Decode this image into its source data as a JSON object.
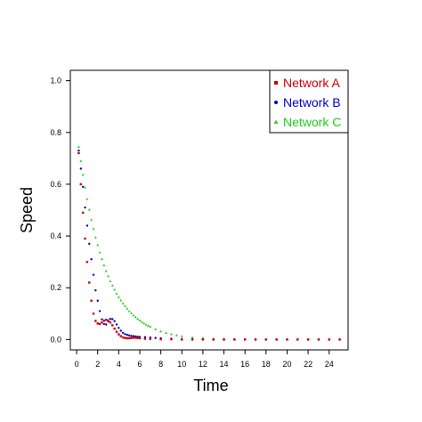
{
  "chart_data": {
    "type": "scatter",
    "xlabel": "Time",
    "ylabel": "Speed",
    "xlim": [
      -0.6,
      25.8
    ],
    "ylim": [
      -0.04,
      1.04
    ],
    "xticks": [
      0,
      2,
      4,
      6,
      8,
      10,
      12,
      14,
      16,
      18,
      20,
      22,
      24
    ],
    "yticks": [
      0.0,
      0.2,
      0.4,
      0.6,
      0.8,
      1.0
    ],
    "xtick_labels": [
      "0",
      "2",
      "4",
      "6",
      "8",
      "10",
      "12",
      "14",
      "16",
      "18",
      "20",
      "22",
      "24"
    ],
    "ytick_labels": [
      "0.0",
      "0.2",
      "0.4",
      "0.6",
      "0.8",
      "1.0"
    ],
    "grid": false,
    "legend_position": "top-right",
    "series": [
      {
        "name": "Network A",
        "color": "#cc0000",
        "marker": "square",
        "x": [
          0.2,
          0.4,
          0.6,
          0.8,
          1.0,
          1.2,
          1.4,
          1.6,
          1.8,
          2.0,
          2.2,
          2.4,
          2.6,
          2.8,
          3.0,
          3.2,
          3.4,
          3.6,
          3.8,
          4.0,
          4.2,
          4.4,
          4.6,
          4.8,
          5.0,
          5.2,
          5.4,
          5.6,
          5.8,
          6.0,
          6.5,
          7,
          8,
          9,
          10,
          11,
          12,
          13,
          14,
          15,
          16,
          17,
          18,
          19,
          20,
          21,
          22,
          23,
          24,
          25
        ],
        "y": [
          0.72,
          0.6,
          0.49,
          0.39,
          0.3,
          0.22,
          0.15,
          0.1,
          0.072,
          0.062,
          0.06,
          0.066,
          0.073,
          0.076,
          0.074,
          0.066,
          0.055,
          0.042,
          0.03,
          0.02,
          0.013,
          0.008,
          0.006,
          0.005,
          0.005,
          0.006,
          0.007,
          0.007,
          0.006,
          0.005,
          0.003,
          0.002,
          0.001,
          0.001,
          0.0,
          0.0,
          0.0,
          0.0,
          0.0,
          0.0,
          0.0,
          0.0,
          0.0,
          0.0,
          0.0,
          0.0,
          0.0,
          0.0,
          0.0,
          0.0
        ]
      },
      {
        "name": "Network B",
        "color": "#0000cc",
        "marker": "circle",
        "x": [
          0.2,
          0.4,
          0.6,
          0.8,
          1.0,
          1.2,
          1.4,
          1.6,
          1.8,
          2.0,
          2.2,
          2.4,
          2.6,
          2.8,
          3.0,
          3.2,
          3.4,
          3.6,
          3.8,
          4.0,
          4.2,
          4.4,
          4.6,
          4.8,
          5.0,
          5.2,
          5.4,
          5.6,
          5.8,
          6.0,
          6.5,
          7,
          7.5,
          8,
          9,
          10,
          11,
          12,
          13,
          14,
          15,
          16,
          17,
          18,
          19,
          20,
          21,
          22,
          23,
          24,
          25
        ],
        "y": [
          0.73,
          0.66,
          0.59,
          0.51,
          0.44,
          0.37,
          0.31,
          0.25,
          0.19,
          0.15,
          0.11,
          0.078,
          0.06,
          0.058,
          0.07,
          0.08,
          0.079,
          0.071,
          0.058,
          0.045,
          0.034,
          0.026,
          0.021,
          0.018,
          0.016,
          0.014,
          0.013,
          0.012,
          0.011,
          0.01,
          0.009,
          0.008,
          0.006,
          0.005,
          0.003,
          0.002,
          0.001,
          0.001,
          0.0,
          0.0,
          0.0,
          0.0,
          0.0,
          0.0,
          0.0,
          0.0,
          0.0,
          0.0,
          0.0,
          0.0,
          0.0
        ]
      },
      {
        "name": "Network C",
        "color": "#22cc22",
        "marker": "triangle",
        "x": [
          0.2,
          0.4,
          0.6,
          0.8,
          1.0,
          1.2,
          1.4,
          1.6,
          1.8,
          2.0,
          2.2,
          2.4,
          2.6,
          2.8,
          3.0,
          3.2,
          3.4,
          3.6,
          3.8,
          4.0,
          4.2,
          4.4,
          4.6,
          4.8,
          5.0,
          5.2,
          5.4,
          5.6,
          5.8,
          6.0,
          6.2,
          6.4,
          6.6,
          6.8,
          7.0,
          7.5,
          8,
          8.5,
          9,
          9.5,
          10,
          11,
          12,
          13,
          14,
          15,
          16,
          17,
          18,
          19,
          20,
          21,
          22,
          23,
          24,
          25
        ],
        "y": [
          0.745,
          0.69,
          0.637,
          0.588,
          0.543,
          0.502,
          0.463,
          0.428,
          0.395,
          0.365,
          0.337,
          0.311,
          0.287,
          0.265,
          0.245,
          0.226,
          0.209,
          0.193,
          0.178,
          0.164,
          0.152,
          0.14,
          0.13,
          0.12,
          0.11,
          0.102,
          0.094,
          0.087,
          0.08,
          0.074,
          0.068,
          0.063,
          0.058,
          0.054,
          0.05,
          0.04,
          0.032,
          0.026,
          0.021,
          0.017,
          0.013,
          0.009,
          0.006,
          0.004,
          0.003,
          0.002,
          0.001,
          0.001,
          0.0,
          0.0,
          0.0,
          0.0,
          0.0,
          0.0,
          0.0,
          0.0
        ]
      }
    ]
  }
}
